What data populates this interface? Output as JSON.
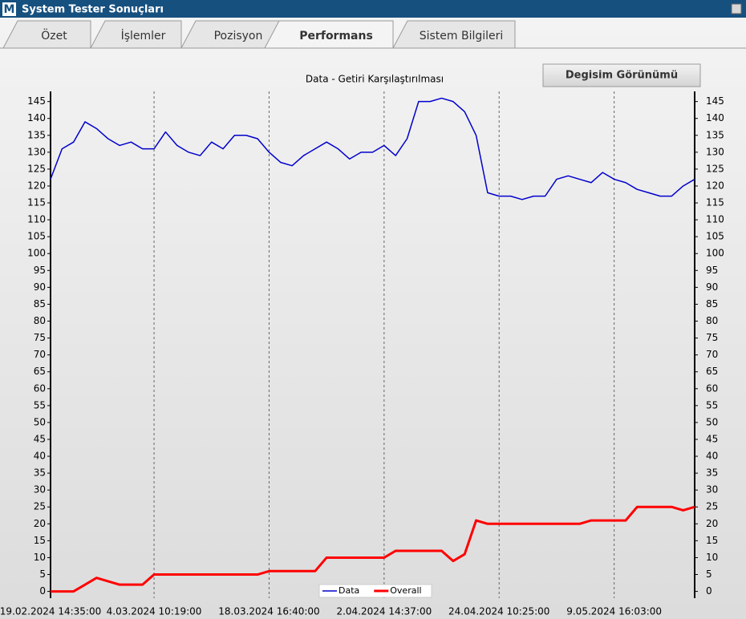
{
  "window": {
    "title": "System Tester Sonuçları",
    "icon": "M"
  },
  "tabs": [
    "Özet",
    "İşlemler",
    "Pozisyon",
    "Performans",
    "Sistem Bilgileri"
  ],
  "active_tab": 3,
  "button": "Degisim Görünümü",
  "chart_data": {
    "type": "line",
    "title": "Data - Getiri Karşılaştırılması",
    "categories": [
      "19.02.2024 14:35:00",
      null,
      null,
      null,
      null,
      null,
      null,
      null,
      null,
      "4.03.2024 10:19:00",
      null,
      null,
      null,
      null,
      null,
      null,
      null,
      null,
      null,
      "18.03.2024 16:40:00",
      null,
      null,
      null,
      null,
      null,
      null,
      null,
      null,
      null,
      "2.04.2024 14:37:00",
      null,
      null,
      null,
      null,
      null,
      null,
      null,
      null,
      null,
      "24.04.2024 10:25:00",
      null,
      null,
      null,
      null,
      null,
      null,
      null,
      null,
      null,
      "9.05.2024 16:03:00",
      null,
      null,
      null,
      null,
      null,
      null,
      null
    ],
    "series": [
      {
        "name": "Data",
        "color": "#0000cc",
        "values": [
          122,
          131,
          133,
          139,
          137,
          134,
          132,
          133,
          131,
          131,
          136,
          132,
          130,
          129,
          133,
          131,
          135,
          135,
          134,
          130,
          127,
          126,
          129,
          131,
          133,
          131,
          128,
          130,
          130,
          132,
          129,
          134,
          145,
          145,
          146,
          145,
          142,
          135,
          118,
          117,
          117,
          116,
          117,
          117,
          122,
          123,
          122,
          121,
          124,
          122,
          121,
          119,
          118,
          117,
          117,
          120,
          122
        ]
      },
      {
        "name": "Overall",
        "color": "#ff0000",
        "values": [
          0,
          0,
          0,
          2,
          4,
          3,
          2,
          2,
          2,
          5,
          5,
          5,
          5,
          5,
          5,
          5,
          5,
          5,
          5,
          6,
          6,
          6,
          6,
          6,
          10,
          10,
          10,
          10,
          10,
          10,
          12,
          12,
          12,
          12,
          12,
          9,
          11,
          21,
          20,
          20,
          20,
          20,
          20,
          20,
          20,
          20,
          20,
          21,
          21,
          21,
          21,
          25,
          25,
          25,
          25,
          24,
          25
        ]
      }
    ],
    "ylim": [
      -2,
      148
    ],
    "yticks": [
      0,
      5,
      10,
      15,
      20,
      25,
      30,
      35,
      40,
      45,
      50,
      55,
      60,
      65,
      70,
      75,
      80,
      85,
      90,
      95,
      100,
      105,
      110,
      115,
      120,
      125,
      130,
      135,
      140,
      145
    ],
    "mirror_y_axis": true,
    "grid": "x",
    "legend": "bottom"
  }
}
